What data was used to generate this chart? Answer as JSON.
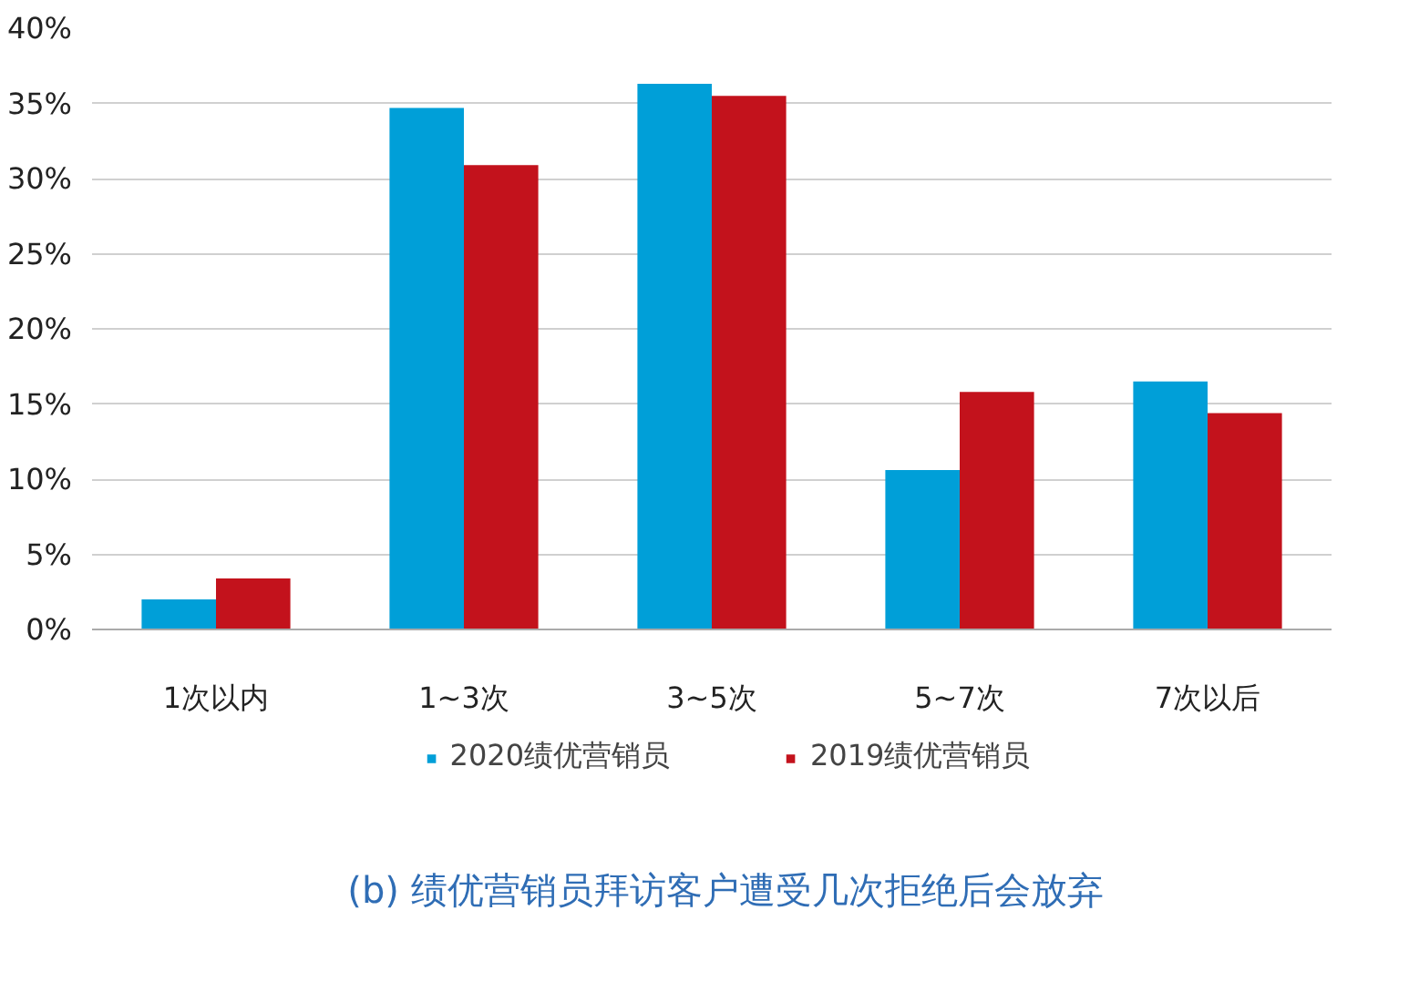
{
  "chart_data": {
    "type": "bar",
    "title": "(b) 绩优营销员拜访客户遭受几次拒绝后会放弃",
    "categories": [
      "1次以内",
      "1~3次",
      "3~5次",
      "5~7次",
      "7次以后"
    ],
    "series": [
      {
        "name": "2020绩优营销员",
        "color": "#009fd8",
        "values": [
          2.0,
          34.7,
          36.3,
          10.6,
          16.5
        ]
      },
      {
        "name": "2019绩优营销员",
        "color": "#c3121c",
        "values": [
          3.4,
          30.9,
          35.5,
          15.8,
          14.4
        ]
      }
    ],
    "ylim": [
      0,
      40
    ],
    "yticks": [
      {
        "value": 0,
        "label": "0%"
      },
      {
        "value": 5,
        "label": "5%"
      },
      {
        "value": 10,
        "label": "10%"
      },
      {
        "value": 15,
        "label": "15%"
      },
      {
        "value": 20,
        "label": "20%"
      },
      {
        "value": 25,
        "label": "25%"
      },
      {
        "value": 30,
        "label": "30%"
      },
      {
        "value": 35,
        "label": "35%"
      },
      {
        "value": 40,
        "label": "40%"
      }
    ],
    "grid": "y",
    "legend": "bottom"
  }
}
